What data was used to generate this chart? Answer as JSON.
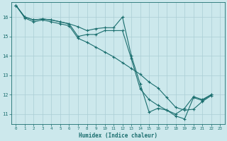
{
  "title": "",
  "xlabel": "Humidex (Indice chaleur)",
  "background_color": "#cce8ec",
  "grid_color": "#aacdd4",
  "line_color": "#1a6e6e",
  "xlim": [
    -0.5,
    23.5
  ],
  "ylim": [
    10.5,
    16.75
  ],
  "xticks": [
    0,
    1,
    2,
    3,
    4,
    5,
    6,
    7,
    8,
    9,
    10,
    11,
    12,
    13,
    14,
    15,
    16,
    17,
    18,
    19,
    20,
    21,
    22,
    23
  ],
  "yticks": [
    11,
    12,
    13,
    14,
    15,
    16
  ],
  "series": [
    {
      "x": [
        0,
        1,
        2,
        3,
        4,
        5,
        6,
        7,
        8,
        9,
        10,
        11,
        12,
        13,
        14,
        15,
        16,
        17,
        18,
        19,
        20,
        21,
        22
      ],
      "y": [
        16.6,
        16.0,
        15.85,
        15.9,
        15.85,
        15.75,
        15.65,
        15.5,
        15.3,
        15.4,
        15.45,
        15.45,
        16.0,
        14.0,
        12.55,
        11.1,
        11.3,
        11.2,
        11.0,
        11.3,
        11.9,
        11.75,
        12.0
      ]
    },
    {
      "x": [
        0,
        1,
        2,
        3,
        4,
        5,
        6,
        7,
        8,
        9,
        10,
        11,
        12,
        13,
        14,
        15,
        16,
        17,
        18,
        19,
        20,
        21,
        22
      ],
      "y": [
        16.6,
        16.0,
        15.85,
        15.9,
        15.85,
        15.75,
        15.65,
        15.0,
        15.1,
        15.1,
        15.3,
        15.3,
        15.3,
        13.85,
        12.3,
        11.75,
        11.45,
        11.2,
        10.9,
        10.75,
        11.85,
        11.7,
        12.0
      ]
    },
    {
      "x": [
        0,
        1,
        2,
        3,
        4,
        5,
        6,
        7,
        8,
        9,
        10,
        11,
        12,
        13,
        14,
        15,
        16,
        17,
        18,
        19,
        20,
        21,
        22
      ],
      "y": [
        16.6,
        15.95,
        15.75,
        15.85,
        15.75,
        15.65,
        15.55,
        14.9,
        14.7,
        14.45,
        14.2,
        13.95,
        13.65,
        13.35,
        13.05,
        12.65,
        12.35,
        11.85,
        11.35,
        11.2,
        11.25,
        11.65,
        11.95
      ]
    }
  ]
}
